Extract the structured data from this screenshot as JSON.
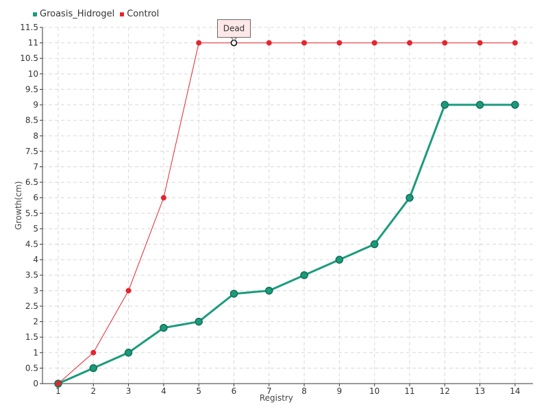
{
  "chart_data": {
    "type": "line",
    "xlabel": "Registry",
    "ylabel": "Growth(cm)",
    "categories": [
      "1",
      "2",
      "3",
      "4",
      "5",
      "6",
      "7",
      "8",
      "9",
      "10",
      "11",
      "12",
      "13",
      "14"
    ],
    "ylim": [
      0,
      11.5
    ],
    "ytick_step": 0.5,
    "grid": true,
    "legend_position": "top-left",
    "series": [
      {
        "name": "Groasis_Hidrogel",
        "color": "#1a9b7c",
        "values": [
          0,
          0.5,
          1,
          1.8,
          2,
          2.9,
          3,
          3.5,
          4,
          4.5,
          6,
          9,
          9,
          9
        ]
      },
      {
        "name": "Control",
        "color": "#e3262e",
        "values": [
          0,
          1,
          3,
          6,
          11,
          11,
          11,
          11,
          11,
          11,
          11,
          11,
          11,
          11
        ]
      }
    ],
    "annotations": [
      {
        "text": "Dead",
        "series": "Control",
        "category": "6"
      }
    ]
  }
}
